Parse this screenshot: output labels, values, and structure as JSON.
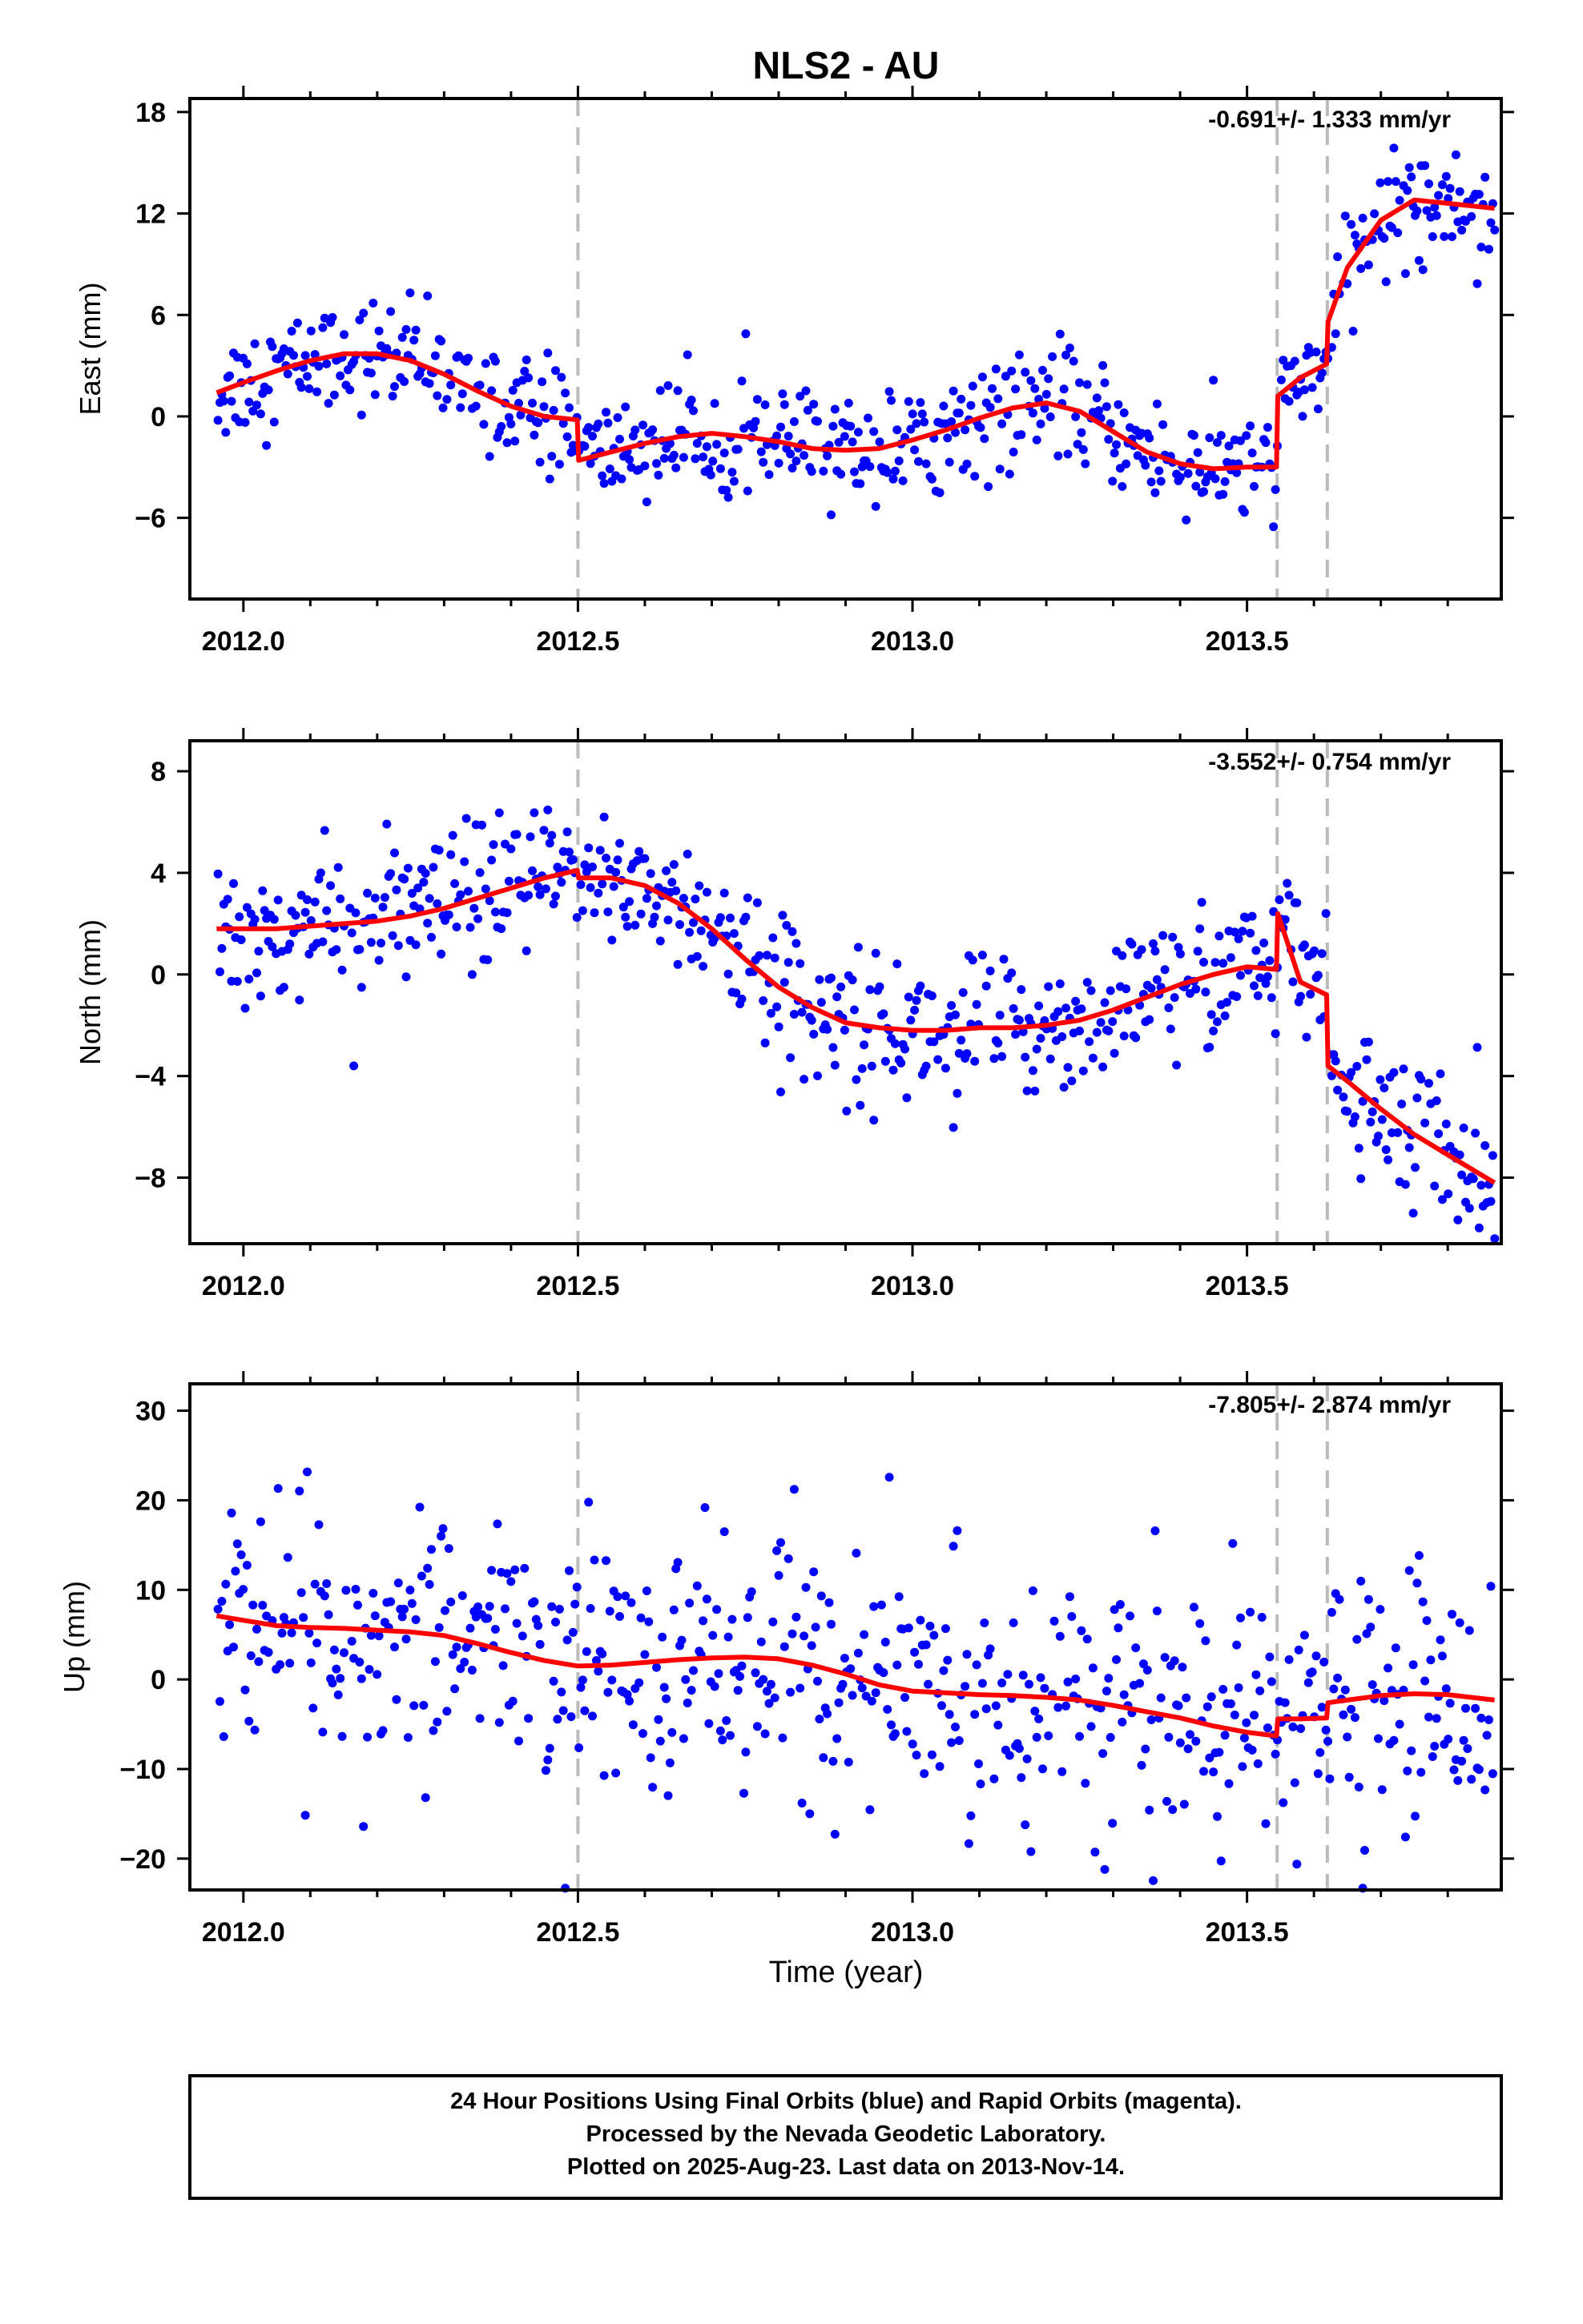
{
  "title": "NLS2 - AU",
  "xlabel": "Time (year)",
  "footer": {
    "line1": "24 Hour Positions Using Final Orbits (blue) and Rapid Orbits (magenta).",
    "line2": "Processed by the Nevada Geodetic Laboratory.",
    "line3": "Plotted on 2025-Aug-23. Last data on 2013-Nov-14."
  },
  "colors": {
    "points": "#0000ff",
    "model": "#ff0000",
    "breaks": "#bbbbbb",
    "frame": "#000000"
  },
  "chart_data": [
    {
      "type": "scatter",
      "component": "east",
      "ylabel": "East (mm)",
      "rate_label": "-0.691+/- 1.333 mm/yr",
      "xlim": [
        2011.92,
        2013.88
      ],
      "ylim": [
        -10.8,
        18.8
      ],
      "xticks": [
        2012.0,
        2012.5,
        2013.0,
        2013.5
      ],
      "xtick_labels": [
        "2012.0",
        "2012.5",
        "2013.0",
        "2013.5"
      ],
      "yticks": [
        -6,
        0,
        6,
        12,
        18
      ],
      "ytick_labels": [
        "−6",
        "0",
        "6",
        "12",
        "18"
      ],
      "breaks": [
        2012.5,
        2013.545,
        2013.62
      ],
      "model": {
        "x": [
          2011.96,
          2012.0,
          2012.05,
          2012.1,
          2012.15,
          2012.2,
          2012.25,
          2012.3,
          2012.35,
          2012.4,
          2012.45,
          2012.499,
          2012.501,
          2012.55,
          2012.6,
          2012.65,
          2012.7,
          2012.75,
          2012.8,
          2012.85,
          2012.9,
          2012.95,
          2013.0,
          2013.05,
          2013.1,
          2013.15,
          2013.2,
          2013.25,
          2013.3,
          2013.35,
          2013.4,
          2013.45,
          2013.5,
          2013.544,
          2013.546,
          2013.58,
          2013.619,
          2013.621,
          2013.65,
          2013.7,
          2013.75,
          2013.8,
          2013.87
        ],
        "y": [
          1.4,
          2.0,
          2.7,
          3.3,
          3.7,
          3.7,
          3.3,
          2.5,
          1.5,
          0.6,
          0.0,
          -0.2,
          -2.6,
          -2.1,
          -1.6,
          -1.2,
          -1.0,
          -1.2,
          -1.5,
          -1.9,
          -2.0,
          -1.9,
          -1.4,
          -0.8,
          -0.1,
          0.5,
          0.8,
          0.3,
          -0.9,
          -2.1,
          -2.8,
          -3.1,
          -3.0,
          -3.0,
          1.2,
          2.3,
          3.1,
          5.6,
          8.8,
          11.6,
          12.8,
          12.6,
          12.3
        ]
      },
      "points_note": "~650 daily positions between 2011.96 and 2013.87 scattering about the model"
    },
    {
      "type": "scatter",
      "component": "north",
      "ylabel": "North (mm)",
      "rate_label": "-3.552+/- 0.754 mm/yr",
      "xlim": [
        2011.92,
        2013.88
      ],
      "ylim": [
        -10.6,
        9.2
      ],
      "xticks": [
        2012.0,
        2012.5,
        2013.0,
        2013.5
      ],
      "xtick_labels": [
        "2012.0",
        "2012.5",
        "2013.0",
        "2013.5"
      ],
      "yticks": [
        -8,
        -4,
        0,
        4,
        8
      ],
      "ytick_labels": [
        "−8",
        "−4",
        "0",
        "4",
        "8"
      ],
      "breaks": [
        2012.5,
        2013.545,
        2013.62
      ],
      "model": {
        "x": [
          2011.96,
          2012.0,
          2012.05,
          2012.1,
          2012.15,
          2012.2,
          2012.25,
          2012.3,
          2012.35,
          2012.4,
          2012.45,
          2012.499,
          2012.501,
          2012.55,
          2012.6,
          2012.65,
          2012.7,
          2012.75,
          2012.8,
          2012.85,
          2012.9,
          2012.95,
          2013.0,
          2013.05,
          2013.1,
          2013.15,
          2013.2,
          2013.25,
          2013.3,
          2013.35,
          2013.4,
          2013.45,
          2013.5,
          2013.544,
          2013.546,
          2013.58,
          2013.619,
          2013.621,
          2013.65,
          2013.7,
          2013.75,
          2013.8,
          2013.87
        ],
        "y": [
          1.8,
          1.8,
          1.8,
          1.9,
          2.0,
          2.1,
          2.3,
          2.6,
          3.0,
          3.4,
          3.8,
          4.1,
          3.8,
          3.8,
          3.5,
          2.8,
          1.8,
          0.6,
          -0.5,
          -1.3,
          -1.9,
          -2.1,
          -2.2,
          -2.2,
          -2.1,
          -2.1,
          -2.0,
          -1.8,
          -1.4,
          -0.9,
          -0.4,
          0.0,
          0.3,
          0.2,
          2.4,
          -0.3,
          -0.8,
          -3.6,
          -4.2,
          -5.3,
          -6.3,
          -7.1,
          -8.2
        ]
      },
      "points_note": "~650 daily positions between 2011.96 and 2013.87 scattering about the model"
    },
    {
      "type": "scatter",
      "component": "up",
      "ylabel": "Up (mm)",
      "rate_label": "-7.805+/- 2.874 mm/yr",
      "xlim": [
        2011.92,
        2013.88
      ],
      "ylim": [
        -23.5,
        33.0
      ],
      "xticks": [
        2012.0,
        2012.5,
        2013.0,
        2013.5
      ],
      "xtick_labels": [
        "2012.0",
        "2012.5",
        "2013.0",
        "2013.5"
      ],
      "yticks": [
        -20,
        -10,
        0,
        10,
        20,
        30
      ],
      "ytick_labels": [
        "−20",
        "−10",
        "0",
        "10",
        "20",
        "30"
      ],
      "breaks": [
        2012.5,
        2013.545,
        2013.62
      ],
      "model": {
        "x": [
          2011.96,
          2012.0,
          2012.05,
          2012.1,
          2012.15,
          2012.2,
          2012.25,
          2012.3,
          2012.35,
          2012.4,
          2012.45,
          2012.5,
          2012.55,
          2012.6,
          2012.65,
          2012.7,
          2012.75,
          2012.8,
          2012.85,
          2012.9,
          2012.95,
          2013.0,
          2013.05,
          2013.1,
          2013.15,
          2013.2,
          2013.25,
          2013.3,
          2013.35,
          2013.4,
          2013.45,
          2013.5,
          2013.544,
          2013.546,
          2013.58,
          2013.619,
          2013.621,
          2013.65,
          2013.7,
          2013.75,
          2013.8,
          2013.87
        ],
        "y": [
          7.1,
          6.6,
          6.0,
          5.8,
          5.7,
          5.5,
          5.3,
          4.9,
          4.0,
          3.0,
          2.1,
          1.5,
          1.6,
          1.9,
          2.2,
          2.4,
          2.5,
          2.3,
          1.6,
          0.6,
          -0.6,
          -1.3,
          -1.5,
          -1.7,
          -1.8,
          -2.0,
          -2.3,
          -2.9,
          -3.6,
          -4.3,
          -5.2,
          -5.9,
          -6.3,
          -4.4,
          -4.4,
          -4.3,
          -2.6,
          -2.3,
          -1.8,
          -1.6,
          -1.7,
          -2.3
        ]
      },
      "points_note": "~650 daily positions between 2011.96 and 2013.87 scattering about the model"
    }
  ]
}
